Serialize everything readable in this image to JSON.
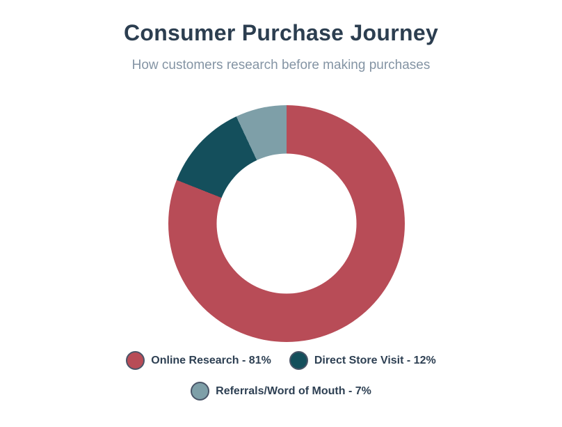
{
  "page": {
    "title": "Consumer Purchase Journey",
    "subtitle": "How customers research before making purchases"
  },
  "chart_data": {
    "type": "pie",
    "subtype": "donut",
    "title": "Consumer Purchase Journey",
    "subtitle": "How customers research before making purchases",
    "categories": [
      "Online Research",
      "Direct Store Visit",
      "Referrals/Word of Mouth"
    ],
    "values": [
      81,
      12,
      7
    ],
    "unit": "%",
    "colors": [
      "#b84c57",
      "#144f5c",
      "#7e9fa8"
    ],
    "start_angle_deg": 0,
    "direction": "clockwise",
    "inner_radius_ratio": 0.59,
    "legend_position": "bottom",
    "legend_labels": [
      "Online Research - 81%",
      "Direct Store Visit - 12%",
      "Referrals/Word of Mouth - 7%"
    ]
  },
  "theme": {
    "background": "#ffffff",
    "title_color": "#2c3e50",
    "subtitle_color": "#8494a4",
    "legend_text_color": "#2e4053",
    "legend_marker_border": "#4a5568"
  }
}
